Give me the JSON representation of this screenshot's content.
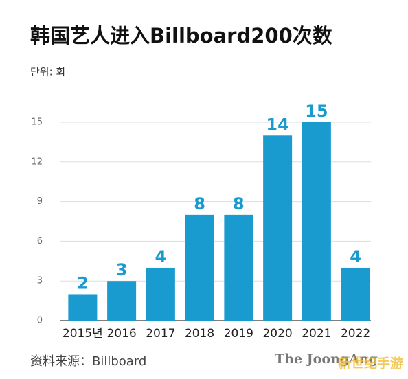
{
  "chart_data": {
    "type": "bar",
    "title": "韩国艺人进入Billboard200次数",
    "subtitle": "단위: 회",
    "source": "资料来源：Billboard",
    "annotations": [
      "The JoongAng",
      "新世纪手游"
    ],
    "categories": [
      "2015년",
      "2016",
      "2017",
      "2018",
      "2019",
      "2020",
      "2021",
      "2022"
    ],
    "values": [
      2,
      3,
      4,
      8,
      8,
      14,
      15,
      4
    ],
    "color": "#1a9bcf",
    "ylim": [
      0,
      15
    ],
    "yticks": [
      0,
      3,
      6,
      9,
      12,
      15
    ],
    "grid": true
  }
}
